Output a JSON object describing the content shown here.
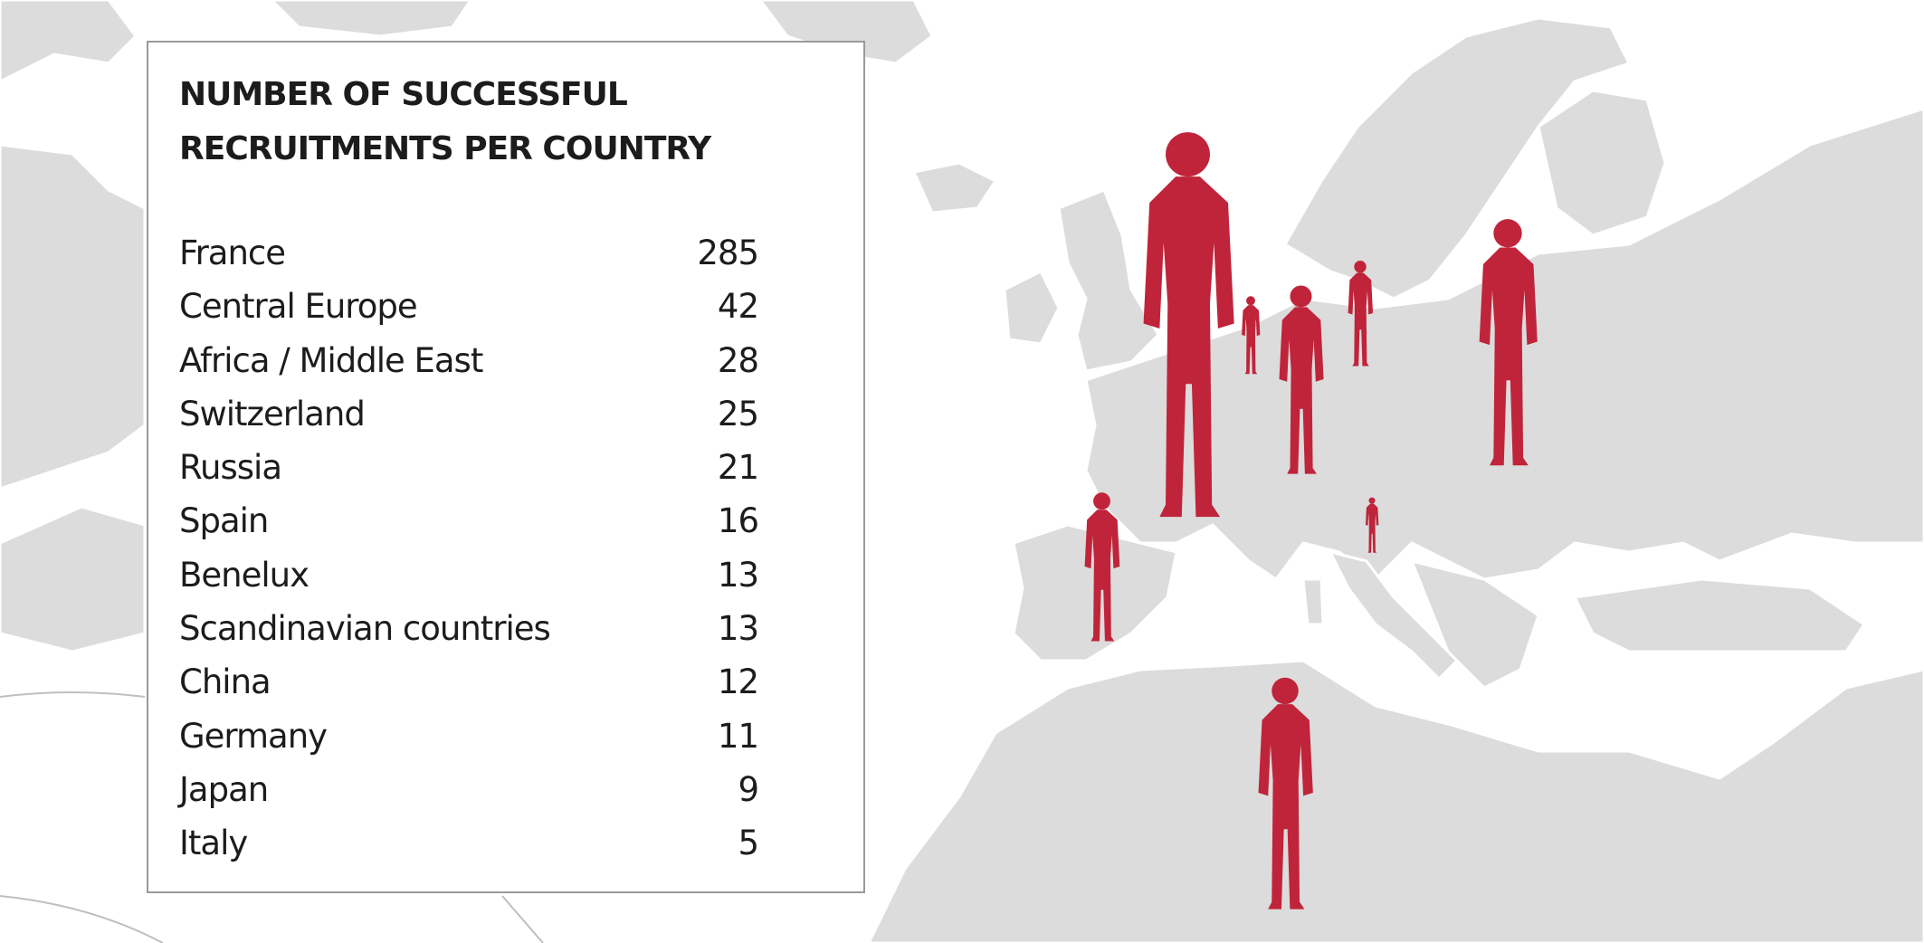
{
  "colors": {
    "map_land": "#dcdcdc",
    "map_border": "#ffffff",
    "figure": "#c0243a",
    "text": "#1c1c1c",
    "panel_border": "#9a9a9a"
  },
  "icons": [
    "person-silhouette-icon"
  ],
  "chart_data": {
    "type": "table",
    "title": "NUMBER OF SUCCESSFUL RECRUITMENTS PER COUNTRY",
    "rows": [
      {
        "label": "France",
        "value": 285
      },
      {
        "label": "Central Europe",
        "value": 42
      },
      {
        "label": "Africa / Middle East",
        "value": 28
      },
      {
        "label": "Switzerland",
        "value": 25
      },
      {
        "label": "Russia",
        "value": 21
      },
      {
        "label": "Spain",
        "value": 16
      },
      {
        "label": "Benelux",
        "value": 13
      },
      {
        "label": "Scandinavian countries",
        "value": 13
      },
      {
        "label": "China",
        "value": 12
      },
      {
        "label": "Germany",
        "value": 11
      },
      {
        "label": "Japan",
        "value": 9
      },
      {
        "label": "Italy",
        "value": 5
      }
    ]
  }
}
